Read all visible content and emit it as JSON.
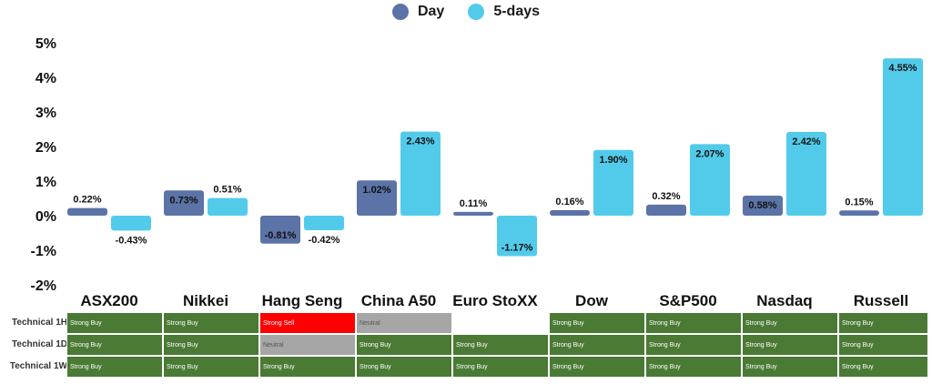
{
  "legend": [
    {
      "name": "Day",
      "color": "#5b73a6"
    },
    {
      "name": "5-days",
      "color": "#52cbea"
    }
  ],
  "chart_data": {
    "type": "bar",
    "categories": [
      "ASX200",
      "Nikkei",
      "Hang Seng",
      "China A50",
      "Euro StoXX",
      "Dow",
      "S&P500",
      "Nasdaq",
      "Russell"
    ],
    "series": [
      {
        "name": "Day",
        "values": [
          0.22,
          0.73,
          -0.81,
          1.02,
          0.11,
          0.16,
          0.32,
          0.58,
          0.15
        ],
        "labels": [
          "0.22%",
          "0.73%",
          "-0.81%",
          "1.02%",
          "0.11%",
          "0.16%",
          "0.32%",
          "0.58%",
          "0.15%"
        ]
      },
      {
        "name": "5-days",
        "values": [
          -0.43,
          0.51,
          -0.42,
          2.43,
          -1.17,
          1.9,
          2.07,
          2.42,
          4.55
        ],
        "labels": [
          "-0.43%",
          "0.51%",
          "-0.42%",
          "2.43%",
          "-1.17%",
          "1.90%",
          "2.07%",
          "2.42%",
          "4.55%"
        ]
      }
    ],
    "yticks": [
      5,
      4,
      3,
      2,
      1,
      0,
      -1,
      -2
    ],
    "ytick_labels": [
      "5%",
      "4%",
      "3%",
      "2%",
      "1%",
      "0%",
      "-1%",
      "-2%"
    ],
    "ylim": [
      -2,
      5
    ],
    "legend_position": "top-center",
    "grid": false
  },
  "technicals": {
    "colors": {
      "Strong Buy": "#4a7a34",
      "Strong Sell": "#ff0000",
      "Neutral": "#a6a6a6",
      "": "#ffffff"
    },
    "rows": [
      {
        "label": "Technical 1H",
        "values": [
          "Strong Buy",
          "Strong Buy",
          "Strong Sell",
          "Neutral",
          "",
          "Strong Buy",
          "Strong Buy",
          "Strong Buy",
          "Strong Buy"
        ]
      },
      {
        "label": "Technical 1D",
        "values": [
          "Strong Buy",
          "Strong Buy",
          "Neutral",
          "Strong Buy",
          "Strong Buy",
          "Strong Buy",
          "Strong Buy",
          "Strong Buy",
          "Strong Buy"
        ]
      },
      {
        "label": "Technical 1W",
        "values": [
          "Strong Buy",
          "Strong Buy",
          "Strong Buy",
          "Strong Buy",
          "Strong Buy",
          "Strong Buy",
          "Strong Buy",
          "Strong Buy",
          "Strong Buy"
        ]
      }
    ]
  }
}
